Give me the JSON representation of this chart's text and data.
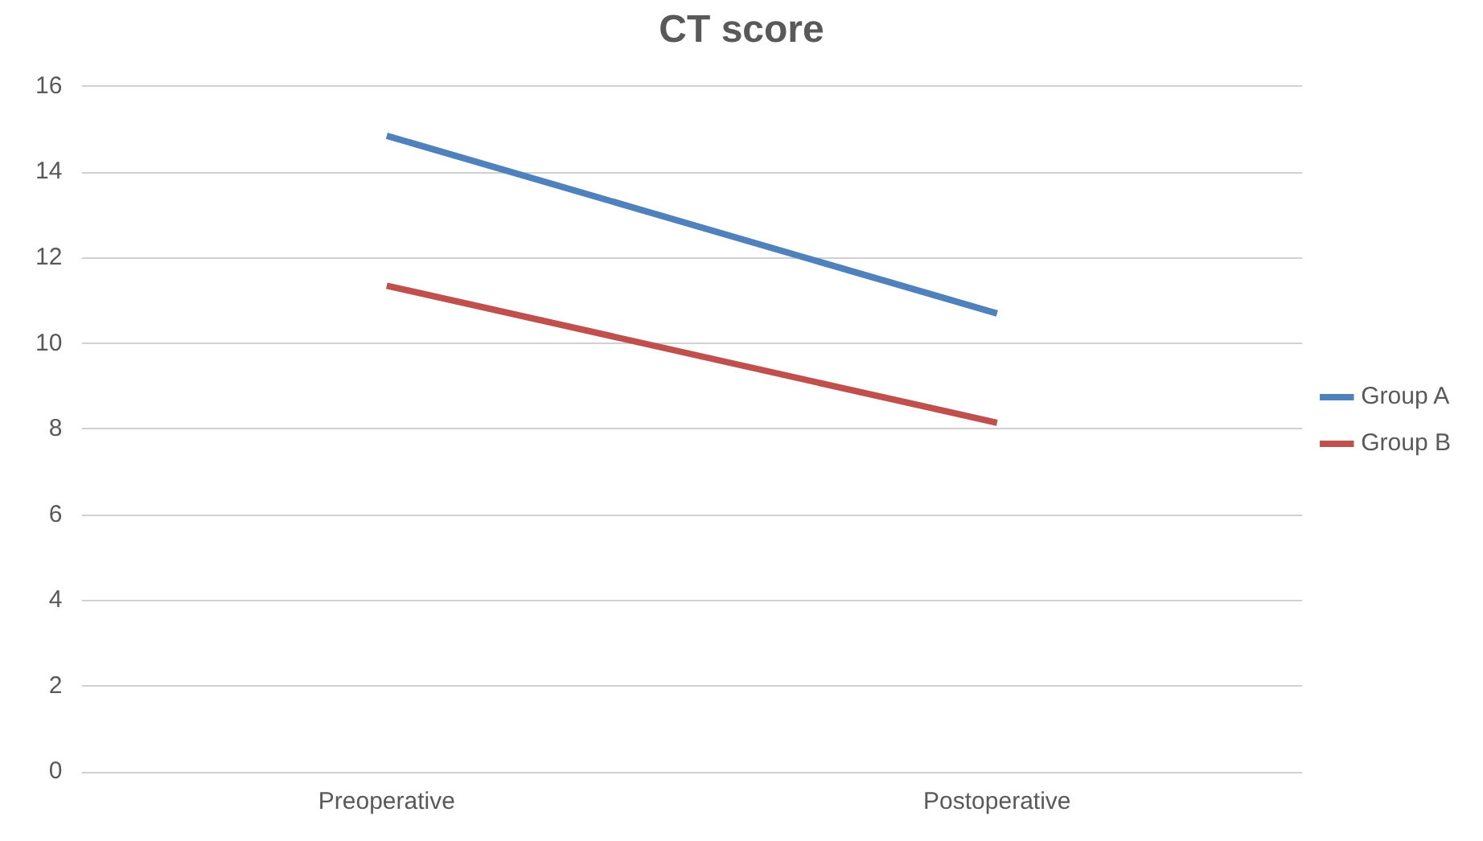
{
  "chart_data": {
    "type": "line",
    "title": "CT score",
    "categories": [
      "Preoperative",
      "Postoperative"
    ],
    "series": [
      {
        "name": "Group A",
        "color": "#4f81bd",
        "values": [
          14.85,
          10.7
        ]
      },
      {
        "name": "Group B",
        "color": "#c0504d",
        "values": [
          11.35,
          8.15
        ]
      }
    ],
    "ylim": [
      0,
      16
    ],
    "yticks": [
      0,
      2,
      4,
      6,
      8,
      10,
      12,
      14,
      16
    ],
    "grid": "y",
    "legend": "right",
    "marker": "none"
  }
}
